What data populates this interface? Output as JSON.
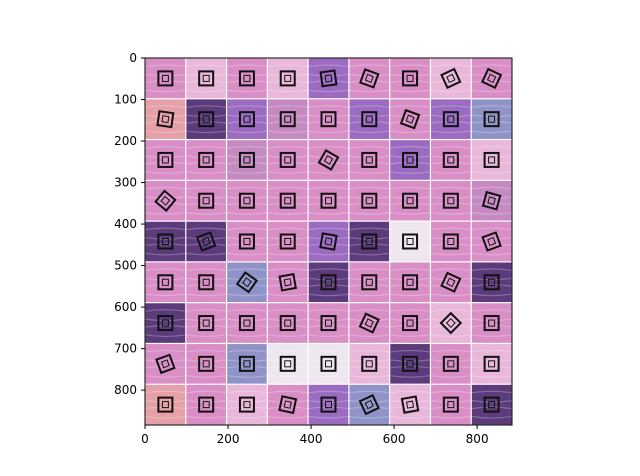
{
  "chart_data": {
    "type": "heatmap",
    "description_kind": "image-grid",
    "grid": {
      "rows": 9,
      "cols": 9
    },
    "x_axis": {
      "lim": [
        0,
        884
      ],
      "ticks": [
        0,
        200,
        400,
        600,
        800
      ]
    },
    "y_axis": {
      "lim": [
        884,
        0
      ],
      "inverted": true,
      "ticks": [
        0,
        100,
        200,
        300,
        400,
        500,
        600,
        700,
        800
      ]
    },
    "tile_palette": {
      "pink": "#d98ec6",
      "light_pink": "#e9b7da",
      "purple": "#9a6bc0",
      "dark_purple": "#5b3b7c",
      "salmon": "#e6a0a8",
      "mauve": "#c48ac1",
      "blue_gray": "#8f93c7",
      "white_ish": "#efe7ef"
    },
    "tiles": [
      [
        "pink",
        "light_pink",
        "pink",
        "light_pink",
        "purple",
        "pink",
        "pink",
        "light_pink",
        "pink"
      ],
      [
        "salmon",
        "dark_purple",
        "purple",
        "mauve",
        "pink",
        "purple",
        "pink",
        "purple",
        "blue_gray"
      ],
      [
        "pink",
        "pink",
        "mauve",
        "pink",
        "pink",
        "pink",
        "purple",
        "pink",
        "light_pink"
      ],
      [
        "pink",
        "pink",
        "pink",
        "pink",
        "pink",
        "pink",
        "pink",
        "pink",
        "mauve"
      ],
      [
        "dark_purple",
        "dark_purple",
        "pink",
        "pink",
        "purple",
        "dark_purple",
        "white_ish",
        "pink",
        "pink"
      ],
      [
        "pink",
        "pink",
        "blue_gray",
        "pink",
        "dark_purple",
        "pink",
        "pink",
        "pink",
        "dark_purple"
      ],
      [
        "dark_purple",
        "pink",
        "pink",
        "pink",
        "pink",
        "pink",
        "pink",
        "light_pink",
        "pink"
      ],
      [
        "pink",
        "pink",
        "blue_gray",
        "white_ish",
        "white_ish",
        "light_pink",
        "dark_purple",
        "pink",
        "light_pink"
      ],
      [
        "salmon",
        "pink",
        "light_pink",
        "pink",
        "purple",
        "blue_gray",
        "light_pink",
        "pink",
        "dark_purple"
      ]
    ],
    "markers": [
      [
        0,
        0,
        0,
        0,
        -8,
        20,
        0,
        -25,
        25
      ],
      [
        8,
        0,
        0,
        0,
        0,
        0,
        20,
        0,
        0
      ],
      [
        0,
        0,
        0,
        0,
        30,
        0,
        0,
        0,
        0
      ],
      [
        40,
        0,
        0,
        0,
        0,
        0,
        0,
        0,
        15
      ],
      [
        0,
        -20,
        0,
        0,
        10,
        0,
        0,
        0,
        -20
      ],
      [
        0,
        0,
        35,
        -10,
        0,
        0,
        0,
        25,
        0
      ],
      [
        0,
        0,
        0,
        0,
        0,
        25,
        0,
        45,
        0
      ],
      [
        -20,
        0,
        0,
        0,
        0,
        0,
        0,
        0,
        0
      ],
      [
        0,
        0,
        0,
        12,
        0,
        -25,
        -10,
        0,
        0
      ]
    ],
    "title": "",
    "xlabel": "",
    "ylabel": ""
  }
}
